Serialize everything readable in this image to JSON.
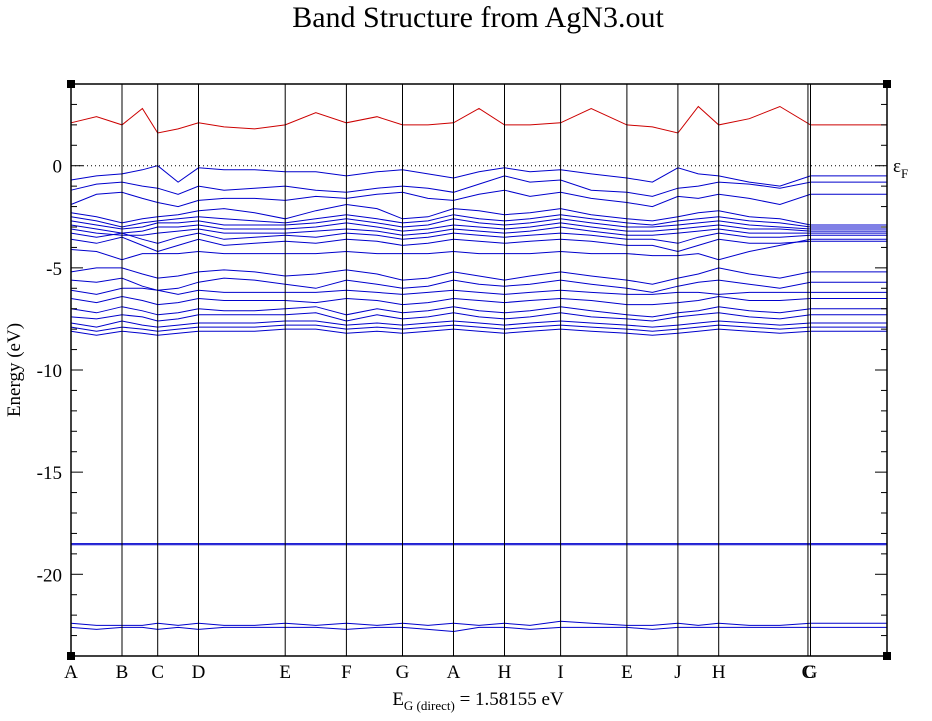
{
  "chart_data": {
    "type": "line",
    "title": "Band Structure from AgN3.out",
    "ylabel": "Energy (eV)",
    "ylim": [
      -24,
      4
    ],
    "yticks": [
      0,
      -5,
      -10,
      -15,
      -20
    ],
    "xlim": [
      0,
      16
    ],
    "kpoints": [
      {
        "label": "A",
        "x": 0
      },
      {
        "label": "B",
        "x": 1
      },
      {
        "label": "C",
        "x": 1.7
      },
      {
        "label": "D",
        "x": 2.5
      },
      {
        "label": "E",
        "x": 4.2
      },
      {
        "label": "F",
        "x": 5.4
      },
      {
        "label": "G",
        "x": 6.5
      },
      {
        "label": "A",
        "x": 7.5
      },
      {
        "label": "H",
        "x": 8.5
      },
      {
        "label": "I",
        "x": 9.6
      },
      {
        "label": "E",
        "x": 10.9
      },
      {
        "label": "J",
        "x": 11.9
      },
      {
        "label": "H",
        "x": 12.7
      },
      {
        "label": "C",
        "x": 14.45
      },
      {
        "label": "G",
        "x": 14.5
      }
    ],
    "fermi": {
      "energy": 0,
      "label": "ε",
      "label_sub": "F",
      "style": "dotted"
    },
    "band_gap": {
      "prefix": "E",
      "sub": "G (direct)",
      "text": " = 1.58155 eV"
    },
    "colors": {
      "conduction": "#cc0000",
      "valence": "#0000cc",
      "axes": "#000000"
    },
    "x": [
      0,
      0.5,
      1,
      1.4,
      1.7,
      2.1,
      2.5,
      3.0,
      3.6,
      4.2,
      4.8,
      5.4,
      6.0,
      6.5,
      7.0,
      7.5,
      8.0,
      8.5,
      9.0,
      9.6,
      10.2,
      10.9,
      11.4,
      11.9,
      12.3,
      12.7,
      13.3,
      13.9,
      14.5
    ],
    "series": [
      {
        "band": "conduction",
        "values": [
          2.1,
          2.4,
          2.0,
          2.8,
          1.6,
          1.8,
          2.1,
          1.9,
          1.8,
          2.0,
          2.6,
          2.1,
          2.4,
          2.0,
          2.0,
          2.1,
          2.8,
          2.0,
          2.0,
          2.1,
          2.8,
          2.0,
          1.9,
          1.6,
          2.9,
          2.0,
          2.3,
          2.9,
          2.0
        ]
      },
      {
        "band": "valence",
        "values": [
          -0.7,
          -0.5,
          -0.4,
          -0.2,
          0.0,
          -0.8,
          -0.1,
          -0.2,
          -0.2,
          -0.3,
          -0.3,
          -0.5,
          -0.3,
          -0.2,
          -0.4,
          -0.6,
          -0.3,
          -0.1,
          -0.3,
          -0.2,
          -0.4,
          -0.6,
          -0.8,
          -0.1,
          -0.4,
          -0.5,
          -0.8,
          -1.0,
          -0.5
        ]
      },
      {
        "band": "valence",
        "values": [
          -1.2,
          -0.9,
          -0.8,
          -1.0,
          -1.1,
          -1.4,
          -1.0,
          -1.2,
          -1.1,
          -1.0,
          -1.2,
          -1.3,
          -1.1,
          -1.0,
          -1.1,
          -1.3,
          -0.9,
          -0.5,
          -0.8,
          -0.7,
          -1.2,
          -1.3,
          -1.5,
          -1.1,
          -1.0,
          -0.8,
          -0.9,
          -1.1,
          -0.8
        ]
      },
      {
        "band": "valence",
        "values": [
          -1.9,
          -1.4,
          -1.3,
          -1.6,
          -1.8,
          -2.0,
          -1.7,
          -1.6,
          -1.6,
          -1.7,
          -1.5,
          -1.6,
          -1.4,
          -1.3,
          -1.6,
          -1.7,
          -1.4,
          -1.2,
          -1.5,
          -1.3,
          -1.6,
          -1.8,
          -2.0,
          -1.5,
          -1.6,
          -1.4,
          -1.6,
          -1.9,
          -1.4
        ]
      },
      {
        "band": "valence",
        "values": [
          -2.3,
          -2.5,
          -2.8,
          -2.6,
          -2.5,
          -2.4,
          -2.2,
          -2.1,
          -2.3,
          -2.6,
          -2.2,
          -1.9,
          -2.1,
          -2.6,
          -2.5,
          -2.1,
          -2.2,
          -2.4,
          -2.3,
          -2.1,
          -2.4,
          -2.6,
          -2.7,
          -2.5,
          -2.3,
          -2.2,
          -2.5,
          -2.6,
          -2.9
        ]
      },
      {
        "band": "valence",
        "values": [
          -2.5,
          -2.7,
          -3.0,
          -2.8,
          -2.7,
          -2.6,
          -2.5,
          -2.6,
          -2.7,
          -2.8,
          -2.6,
          -2.4,
          -2.6,
          -2.8,
          -2.7,
          -2.4,
          -2.6,
          -2.7,
          -2.6,
          -2.4,
          -2.6,
          -2.8,
          -2.9,
          -2.7,
          -2.6,
          -2.5,
          -2.7,
          -2.8,
          -3.0
        ]
      },
      {
        "band": "valence",
        "values": [
          -2.7,
          -2.9,
          -3.1,
          -3.0,
          -2.8,
          -2.8,
          -2.7,
          -2.9,
          -2.9,
          -2.9,
          -2.8,
          -2.6,
          -2.8,
          -3.0,
          -2.9,
          -2.6,
          -2.8,
          -2.9,
          -2.8,
          -2.6,
          -2.8,
          -3.0,
          -3.0,
          -2.9,
          -2.8,
          -2.7,
          -2.9,
          -3.0,
          -3.1
        ]
      },
      {
        "band": "valence",
        "values": [
          -2.9,
          -3.1,
          -3.3,
          -3.2,
          -3.0,
          -3.0,
          -2.9,
          -3.1,
          -3.1,
          -3.1,
          -3.0,
          -2.8,
          -3.0,
          -3.2,
          -3.1,
          -2.9,
          -3.0,
          -3.1,
          -3.0,
          -2.8,
          -3.0,
          -3.2,
          -3.2,
          -3.1,
          -3.0,
          -2.9,
          -3.1,
          -3.1,
          -3.2
        ]
      },
      {
        "band": "valence",
        "values": [
          -3.1,
          -3.3,
          -3.4,
          -3.4,
          -3.3,
          -3.2,
          -3.1,
          -3.3,
          -3.3,
          -3.3,
          -3.2,
          -3.1,
          -3.2,
          -3.4,
          -3.3,
          -3.1,
          -3.2,
          -3.3,
          -3.2,
          -3.0,
          -3.2,
          -3.4,
          -3.4,
          -3.3,
          -3.2,
          -3.1,
          -3.3,
          -3.3,
          -3.3
        ]
      },
      {
        "band": "valence",
        "values": [
          -3.3,
          -3.5,
          -3.3,
          -3.6,
          -3.8,
          -3.5,
          -3.3,
          -3.6,
          -3.5,
          -3.4,
          -3.5,
          -3.3,
          -3.4,
          -3.6,
          -3.5,
          -3.3,
          -3.4,
          -3.5,
          -3.4,
          -3.3,
          -3.4,
          -3.6,
          -3.6,
          -3.8,
          -3.5,
          -3.3,
          -3.5,
          -3.5,
          -3.4
        ]
      },
      {
        "band": "valence",
        "values": [
          -3.6,
          -3.8,
          -3.5,
          -3.9,
          -4.2,
          -3.9,
          -3.6,
          -3.9,
          -3.8,
          -3.7,
          -3.8,
          -3.6,
          -3.7,
          -3.9,
          -3.8,
          -3.6,
          -3.7,
          -3.8,
          -3.7,
          -3.6,
          -3.7,
          -3.9,
          -3.9,
          -4.2,
          -3.9,
          -3.6,
          -3.8,
          -3.8,
          -3.7
        ]
      },
      {
        "band": "valence",
        "values": [
          -4.1,
          -4.2,
          -4.6,
          -4.3,
          -4.3,
          -4.3,
          -4.2,
          -4.3,
          -4.3,
          -4.3,
          -4.3,
          -4.2,
          -4.3,
          -4.3,
          -4.3,
          -4.2,
          -4.3,
          -4.3,
          -4.3,
          -4.2,
          -4.3,
          -4.3,
          -4.4,
          -4.4,
          -4.3,
          -4.6,
          -4.2,
          -3.9,
          -3.6
        ]
      },
      {
        "band": "valence",
        "values": [
          -5.2,
          -5.0,
          -5.0,
          -5.3,
          -5.5,
          -5.4,
          -5.2,
          -5.1,
          -5.2,
          -5.4,
          -5.3,
          -5.1,
          -5.3,
          -5.6,
          -5.5,
          -5.2,
          -5.4,
          -5.6,
          -5.4,
          -5.2,
          -5.4,
          -5.6,
          -5.8,
          -5.5,
          -5.3,
          -5.0,
          -5.3,
          -5.5,
          -5.2
        ]
      },
      {
        "band": "valence",
        "values": [
          -5.6,
          -5.7,
          -5.5,
          -5.9,
          -6.1,
          -6.0,
          -5.7,
          -5.5,
          -5.6,
          -5.8,
          -6.0,
          -5.6,
          -5.8,
          -6.0,
          -5.9,
          -5.6,
          -5.8,
          -5.9,
          -5.8,
          -5.6,
          -5.8,
          -6.0,
          -6.2,
          -5.9,
          -5.7,
          -5.6,
          -5.8,
          -6.0,
          -5.7
        ]
      },
      {
        "band": "valence",
        "values": [
          -6.1,
          -6.3,
          -6.0,
          -6.0,
          -6.1,
          -6.3,
          -6.1,
          -6.2,
          -6.2,
          -6.2,
          -6.2,
          -6.1,
          -6.2,
          -6.3,
          -6.2,
          -6.1,
          -6.2,
          -6.3,
          -6.2,
          -6.1,
          -6.2,
          -6.3,
          -6.3,
          -6.2,
          -6.2,
          -6.3,
          -6.2,
          -6.2,
          -6.2
        ]
      },
      {
        "band": "valence",
        "values": [
          -6.5,
          -6.7,
          -6.4,
          -6.6,
          -6.8,
          -6.7,
          -6.5,
          -6.6,
          -6.6,
          -6.6,
          -6.7,
          -6.5,
          -6.6,
          -6.8,
          -6.7,
          -6.5,
          -6.6,
          -6.7,
          -6.6,
          -6.5,
          -6.6,
          -6.8,
          -6.8,
          -6.7,
          -6.6,
          -6.4,
          -6.6,
          -6.6,
          -6.5
        ]
      },
      {
        "band": "valence",
        "values": [
          -7.0,
          -7.2,
          -6.9,
          -7.1,
          -7.3,
          -7.2,
          -7.0,
          -7.1,
          -7.1,
          -7.0,
          -6.9,
          -7.3,
          -7.0,
          -7.2,
          -7.1,
          -6.9,
          -7.1,
          -7.2,
          -7.1,
          -6.9,
          -7.1,
          -7.3,
          -7.4,
          -7.2,
          -7.1,
          -6.9,
          -7.1,
          -7.2,
          -7.0
        ]
      },
      {
        "band": "valence",
        "values": [
          -7.4,
          -7.5,
          -7.3,
          -7.4,
          -7.6,
          -7.5,
          -7.3,
          -7.3,
          -7.3,
          -7.3,
          -7.2,
          -7.6,
          -7.3,
          -7.5,
          -7.4,
          -7.2,
          -7.4,
          -7.5,
          -7.4,
          -7.2,
          -7.4,
          -7.5,
          -7.6,
          -7.4,
          -7.3,
          -7.2,
          -7.4,
          -7.5,
          -7.3
        ]
      },
      {
        "band": "valence",
        "values": [
          -7.7,
          -7.9,
          -7.6,
          -7.8,
          -7.9,
          -7.8,
          -7.7,
          -7.7,
          -7.7,
          -7.6,
          -7.6,
          -7.8,
          -7.7,
          -7.8,
          -7.7,
          -7.6,
          -7.7,
          -7.8,
          -7.7,
          -7.6,
          -7.7,
          -7.8,
          -7.9,
          -7.8,
          -7.7,
          -7.6,
          -7.7,
          -7.8,
          -7.7
        ]
      },
      {
        "band": "valence",
        "values": [
          -7.9,
          -8.1,
          -7.9,
          -8.0,
          -8.1,
          -8.0,
          -7.9,
          -7.9,
          -7.9,
          -7.8,
          -7.8,
          -8.0,
          -7.9,
          -8.0,
          -7.9,
          -7.8,
          -7.9,
          -8.0,
          -7.9,
          -7.8,
          -7.9,
          -8.0,
          -8.1,
          -8.0,
          -7.9,
          -7.8,
          -7.9,
          -8.0,
          -7.9
        ]
      },
      {
        "band": "valence",
        "values": [
          -8.1,
          -8.3,
          -8.1,
          -8.2,
          -8.3,
          -8.2,
          -8.1,
          -8.1,
          -8.1,
          -8.0,
          -8.0,
          -8.2,
          -8.1,
          -8.2,
          -8.1,
          -8.0,
          -8.1,
          -8.2,
          -8.1,
          -8.0,
          -8.1,
          -8.2,
          -8.3,
          -8.2,
          -8.1,
          -8.0,
          -8.1,
          -8.2,
          -8.1
        ]
      },
      {
        "band": "valence",
        "values": [
          -18.5,
          -18.5,
          -18.5,
          -18.5,
          -18.5,
          -18.5,
          -18.5,
          -18.5,
          -18.5,
          -18.5,
          -18.5,
          -18.5,
          -18.5,
          -18.5,
          -18.5,
          -18.5,
          -18.5,
          -18.5,
          -18.5,
          -18.5,
          -18.5,
          -18.5,
          -18.5,
          -18.5,
          -18.5,
          -18.5,
          -18.5,
          -18.5,
          -18.5
        ]
      },
      {
        "band": "valence",
        "values": [
          -18.55,
          -18.55,
          -18.55,
          -18.55,
          -18.55,
          -18.55,
          -18.55,
          -18.55,
          -18.55,
          -18.55,
          -18.55,
          -18.55,
          -18.55,
          -18.55,
          -18.55,
          -18.55,
          -18.55,
          -18.55,
          -18.55,
          -18.55,
          -18.55,
          -18.55,
          -18.55,
          -18.55,
          -18.55,
          -18.55,
          -18.55,
          -18.55,
          -18.55
        ]
      },
      {
        "band": "valence",
        "values": [
          -22.4,
          -22.5,
          -22.5,
          -22.5,
          -22.4,
          -22.5,
          -22.4,
          -22.5,
          -22.5,
          -22.4,
          -22.5,
          -22.4,
          -22.5,
          -22.4,
          -22.5,
          -22.4,
          -22.5,
          -22.4,
          -22.5,
          -22.3,
          -22.4,
          -22.5,
          -22.5,
          -22.4,
          -22.5,
          -22.4,
          -22.5,
          -22.5,
          -22.4
        ]
      },
      {
        "band": "valence",
        "values": [
          -22.6,
          -22.7,
          -22.6,
          -22.6,
          -22.7,
          -22.6,
          -22.7,
          -22.6,
          -22.6,
          -22.6,
          -22.6,
          -22.7,
          -22.6,
          -22.6,
          -22.7,
          -22.8,
          -22.6,
          -22.6,
          -22.7,
          -22.6,
          -22.6,
          -22.6,
          -22.7,
          -22.6,
          -22.6,
          -22.6,
          -22.6,
          -22.6,
          -22.6
        ]
      }
    ]
  }
}
